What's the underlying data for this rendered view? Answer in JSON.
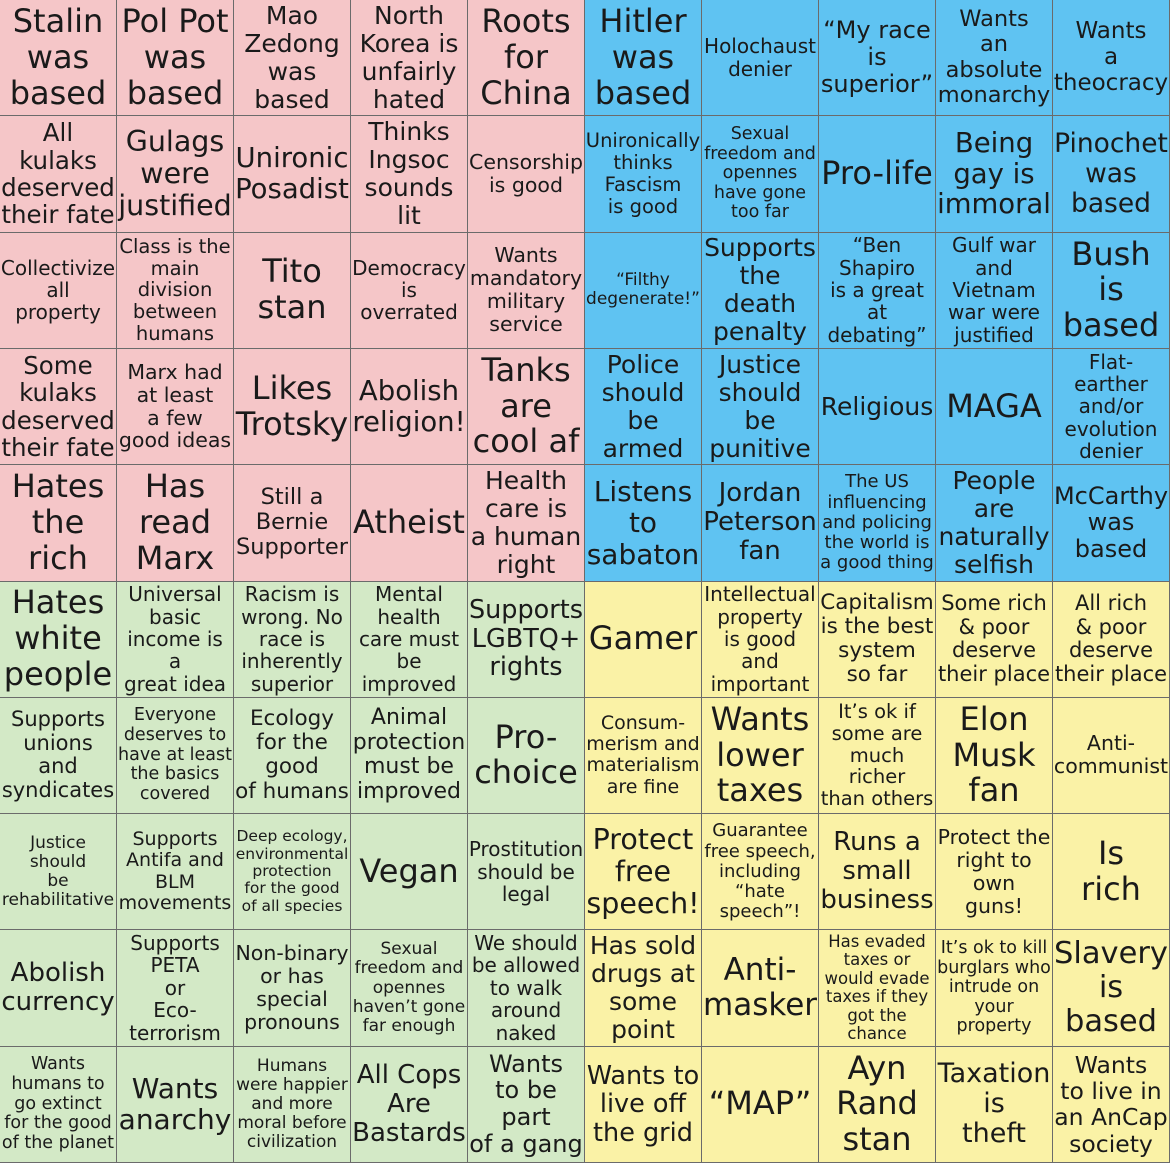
{
  "grid": {
    "rows": [
      [
        "Stalin\nwas\nbased",
        "Pol Pot\nwas\nbased",
        "Mao\nZedong\nwas based",
        "North\nKorea is\nunfairly\nhated",
        "Roots\nfor\nChina",
        "Hitler\nwas\nbased",
        "Holochaust\ndenier",
        "“My race\nis\nsuperior”",
        "Wants\nan absolute\nmonarchy",
        "Wants\na\ntheocracy"
      ],
      [
        "All\nkulaks\ndeserved\ntheir fate",
        "Gulags\nwere\njustified",
        "Unironic\nPosadist",
        "Thinks\nIngsoc\nsounds lit",
        "Censorship\nis good",
        "Unironically\nthinks\nFascism\nis good",
        "Sexual\nfreedom and\nopennes\nhave gone\ntoo far",
        "Pro-life",
        "Being\ngay is\nimmoral",
        "Pinochet\nwas\nbased"
      ],
      [
        "Collectivize\nall\nproperty",
        "Class is the\nmain division\nbetween\nhumans",
        "Tito\nstan",
        "Democracy\nis overrated",
        "Wants\nmandatory\nmilitary\nservice",
        "“Filthy\ndegenerate!”",
        "Supports\nthe death\npenalty",
        "“Ben Shapiro\nis a great\nat debating”",
        "Gulf war\nand Vietnam\nwar were\njustified",
        "Bush\nis\nbased"
      ],
      [
        "Some\nkulaks\ndeserved\ntheir fate",
        "Marx had\nat least\na few\ngood ideas",
        "Likes\nTrotsky",
        "Abolish\nreligion!",
        "Tanks\nare\ncool af",
        "Police\nshould\nbe armed",
        "Justice\nshould\nbe punitive",
        "Religious",
        "MAGA",
        "Flat-earther\nand/or\nevolution\ndenier"
      ],
      [
        "Hates\nthe rich",
        "Has read\nMarx",
        "Still a\nBernie\nSupporter",
        "Atheist",
        "Health\ncare is\na human\nright",
        "Listens\nto\nsabaton",
        "Jordan\nPeterson\nfan",
        "The US\ninfluencing\nand policing\nthe world is\na good thing",
        "People\nare\nnaturally\nselfish",
        "McCarthy\nwas\nbased"
      ],
      [
        "Hates\nwhite\npeople",
        "Universal\nbasic\nincome is a\ngreat idea",
        "Racism is\nwrong. No\nrace is\ninherently\nsuperior",
        "Mental\nhealth\ncare must\nbe improved",
        "Supports\nLGBTQ+\nrights",
        "Gamer",
        "Intellectual\nproperty\nis good and\nimportant",
        "Capitalism\nis the best\nsystem\nso far",
        "Some rich\n& poor\ndeserve\ntheir place",
        "All rich\n& poor\ndeserve\ntheir place"
      ],
      [
        "Supports\nunions and\nsyndicates",
        "Everyone\ndeserves to\nhave at least\nthe basics\ncovered",
        "Ecology\nfor the good\nof humans",
        "Animal\nprotection\nmust be\nimproved",
        "Pro-choice",
        "Consum-\nmerism and\nmaterialism\nare fine",
        "Wants\nlower\ntaxes",
        "It’s ok if\nsome are\nmuch richer\nthan others",
        "Elon Musk\nfan",
        "Anti-\ncommunist"
      ],
      [
        "Justice\nshould\nbe\nrehabilitative",
        "Supports\nAntifa and\nBLM\nmovements",
        "Deep ecology,\nenvironmental\nprotection\nfor the good\nof all species",
        "Vegan",
        "Prostitution\nshould be\nlegal",
        "Protect\nfree\nspeech!",
        "Guarantee\nfree speech,\nincluding\n“hate\nspeech”!",
        "Runs a\nsmall\nbusiness",
        "Protect the\nright to own\nguns!",
        "Is\nrich"
      ],
      [
        "Abolish\ncurrency",
        "Supports\nPETA\nor\nEco-terrorism",
        "Non-binary\nor has\nspecial\npronouns",
        "Sexual\nfreedom and\nopennes\nhaven’t gone\nfar enough",
        "We should\nbe allowed\nto walk\naround\nnaked",
        "Has sold\ndrugs at\nsome point",
        "Anti-\nmasker",
        "Has evaded\ntaxes or\nwould evade\ntaxes if they\ngot the chance",
        "It’s ok to kill\nburglars who\nintrude on\nyour property",
        "Slavery\nis based"
      ],
      [
        "Wants\nhumans to\ngo extinct\nfor the good\nof the planet",
        "Wants\nanarchy",
        "Humans\nwere happier\nand more\nmoral before\ncivilization",
        "All Cops\nAre\nBastards",
        "Wants\nto be part\nof a gang",
        "Wants to\nlive off\nthe grid",
        "“MAP”",
        "Ayn\nRand\nstan",
        "Taxation\nis\ntheft",
        "Wants\nto live in\nan AnCap\nsociety"
      ]
    ]
  }
}
